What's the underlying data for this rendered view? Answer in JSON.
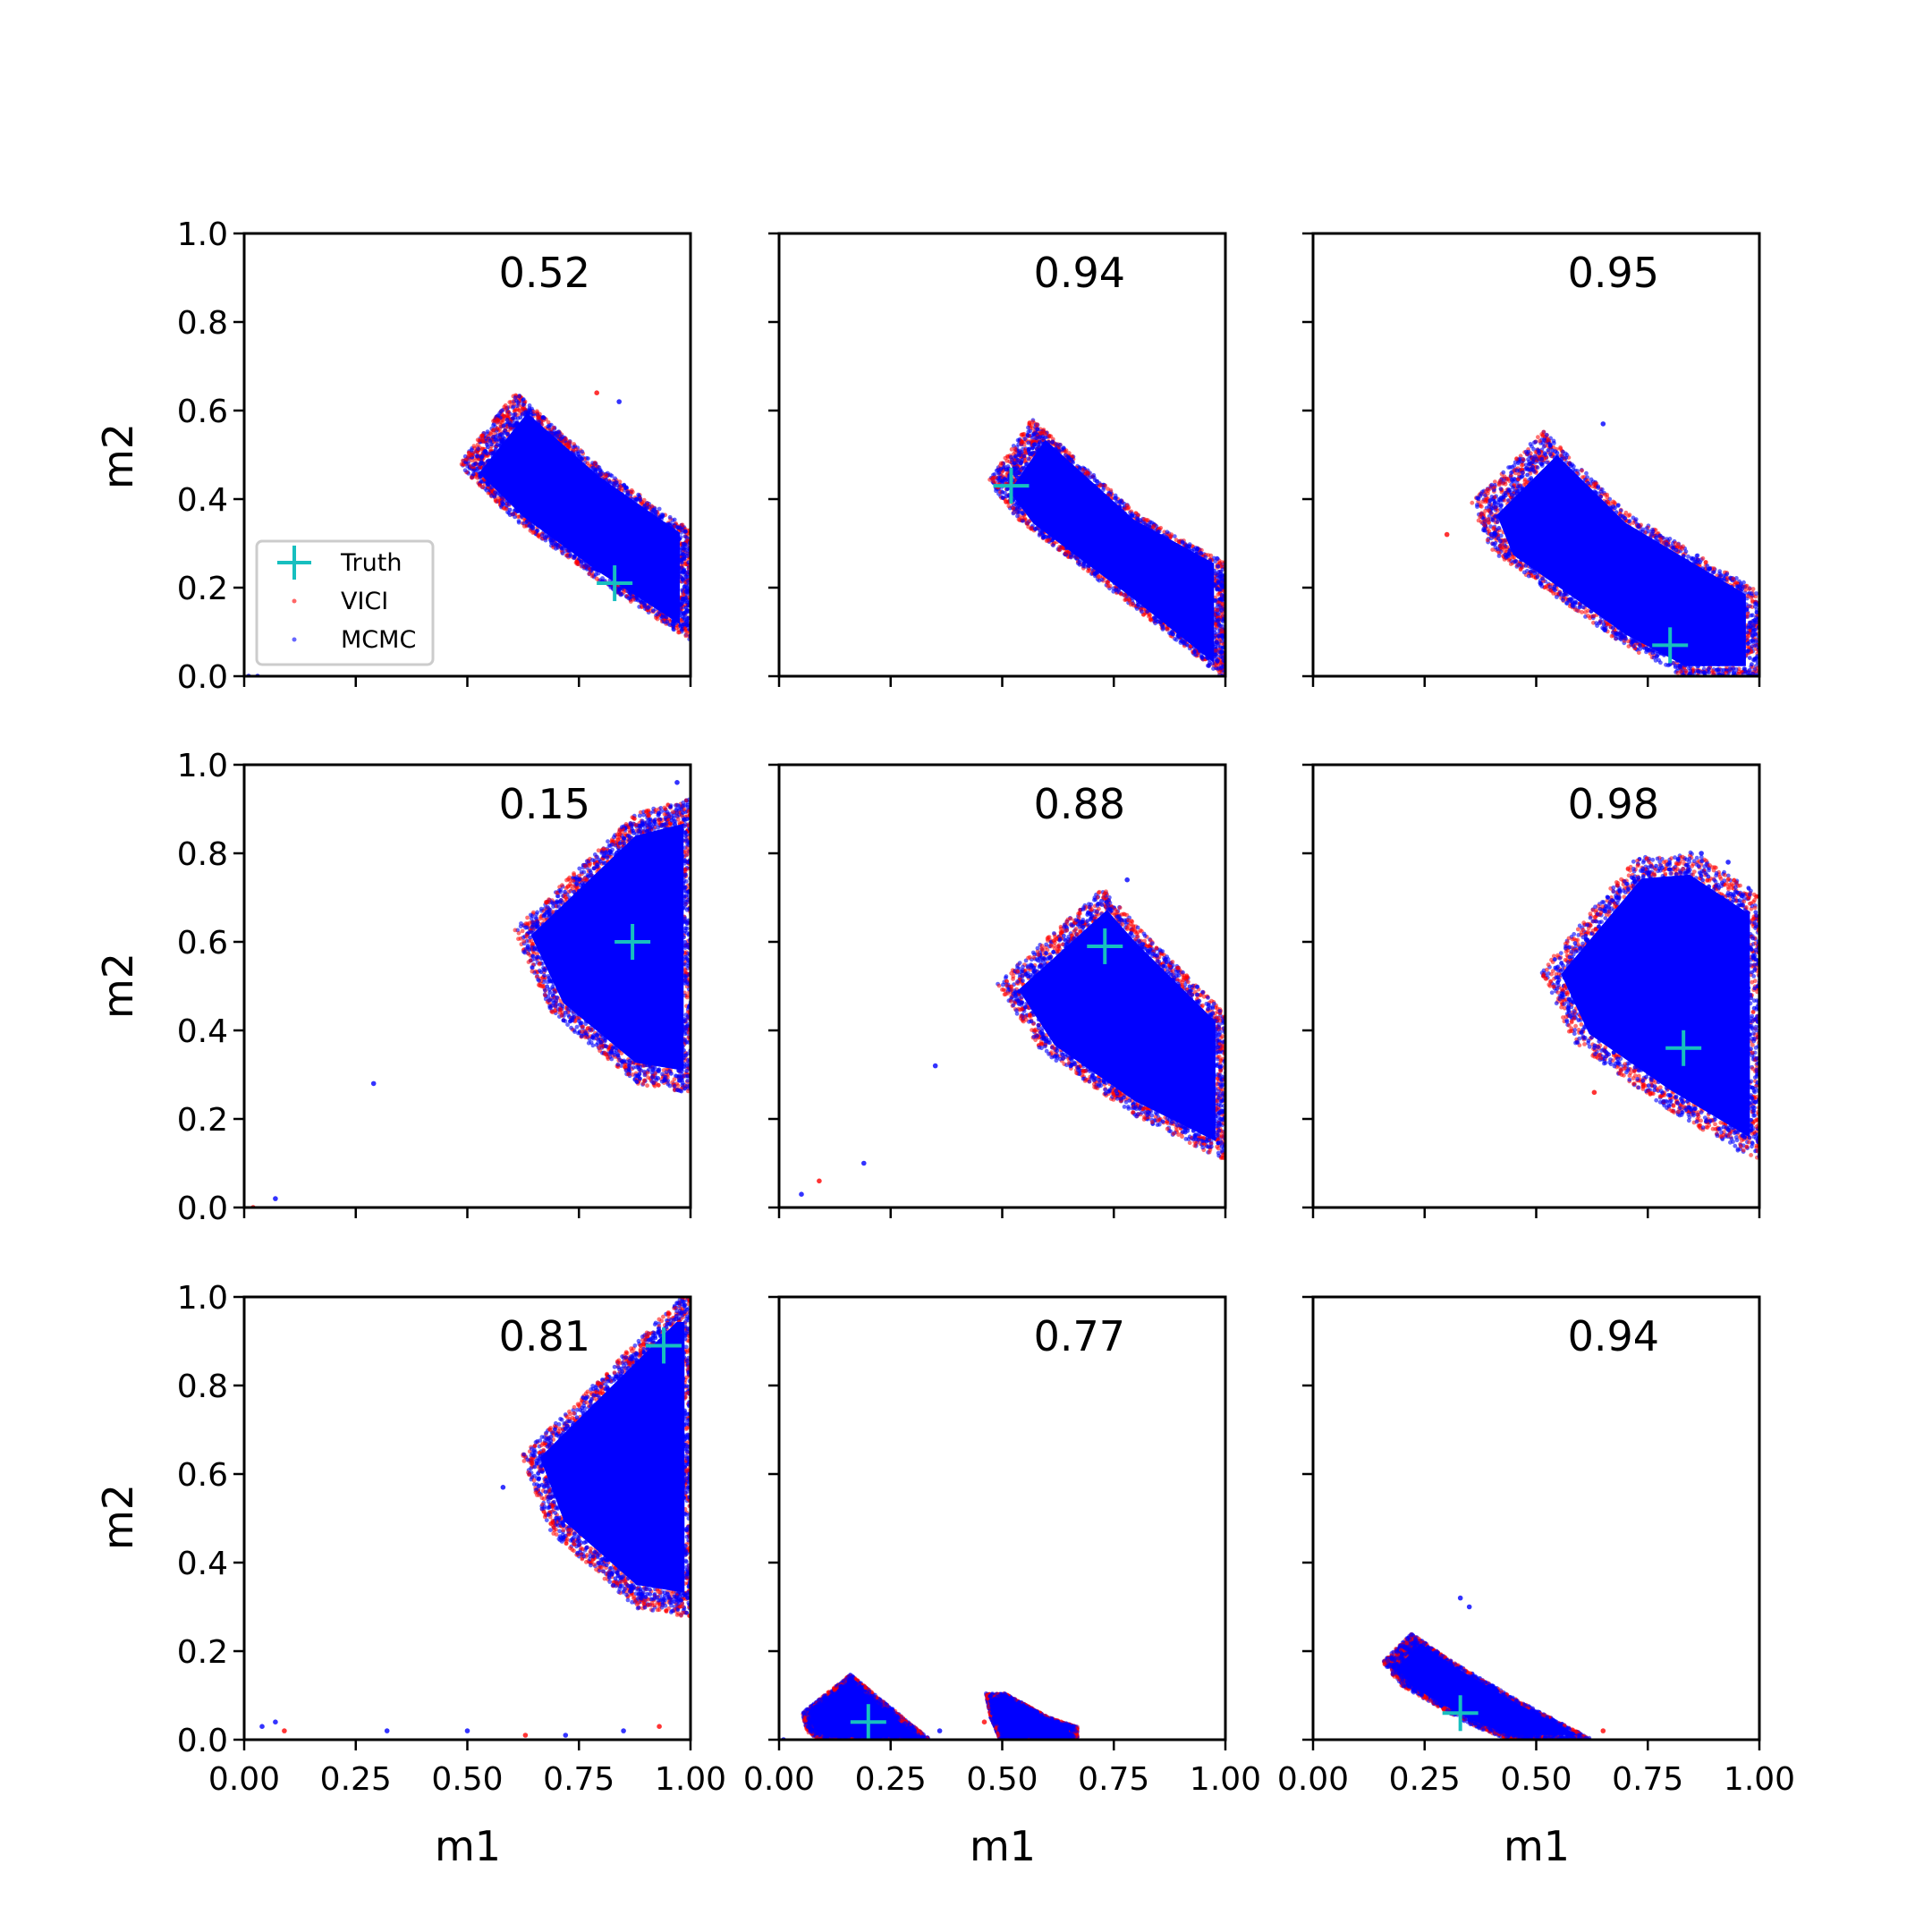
{
  "figure": {
    "xlabel": "m1",
    "ylabel": "m2",
    "legend": {
      "placement": "lower-left of first panel",
      "entries": [
        {
          "label": "Truth",
          "marker": "plus",
          "color": "#17bfbf"
        },
        {
          "label": "VICI",
          "marker": "dot",
          "color": "#ff0000"
        },
        {
          "label": "MCMC",
          "marker": "dot",
          "color": "#0000ff"
        }
      ]
    }
  },
  "chart_data": [
    {
      "type": "scatter",
      "overlap": "0.52",
      "truth": [
        0.83,
        0.21
      ],
      "xlim": [
        0,
        1
      ],
      "ylim": [
        0,
        1
      ],
      "xticks": [
        "0.00",
        "0.25",
        "0.50",
        "0.75",
        "1.00"
      ],
      "yticks": [
        "0.0",
        "0.2",
        "0.4",
        "0.6",
        "0.8",
        "1.0"
      ],
      "grid": false,
      "band": [
        [
          0.62,
          0.62
        ],
        [
          0.5,
          0.47
        ],
        [
          0.61,
          0.36
        ],
        [
          0.8,
          0.22
        ],
        [
          1.0,
          0.09
        ],
        [
          1.0,
          0.32
        ],
        [
          0.8,
          0.46
        ]
      ],
      "outliers": [
        [
          0.01,
          0.0
        ],
        [
          0.03,
          0.0
        ],
        [
          0.79,
          0.64
        ],
        [
          0.84,
          0.62
        ]
      ]
    },
    {
      "type": "scatter",
      "overlap": "0.94",
      "truth": [
        0.52,
        0.43
      ],
      "xlim": [
        0,
        1
      ],
      "ylim": [
        0,
        1
      ],
      "xticks": [
        "0.00",
        "0.25",
        "0.50",
        "0.75",
        "1.00"
      ],
      "yticks": [
        "0.0",
        "0.2",
        "0.4",
        "0.6",
        "0.8",
        "1.0"
      ],
      "grid": false,
      "band": [
        [
          0.58,
          0.56
        ],
        [
          0.49,
          0.43
        ],
        [
          0.55,
          0.35
        ],
        [
          0.8,
          0.16
        ],
        [
          1.0,
          0.0
        ],
        [
          1.0,
          0.25
        ],
        [
          0.8,
          0.36
        ]
      ],
      "outliers": []
    },
    {
      "type": "scatter",
      "overlap": "0.95",
      "truth": [
        0.8,
        0.07
      ],
      "xlim": [
        0,
        1
      ],
      "ylim": [
        0,
        1
      ],
      "xticks": [
        "0.00",
        "0.25",
        "0.50",
        "0.75",
        "1.00"
      ],
      "yticks": [
        "0.0",
        "0.2",
        "0.4",
        "0.6",
        "0.8",
        "1.0"
      ],
      "grid": false,
      "band": [
        [
          0.53,
          0.53
        ],
        [
          0.38,
          0.38
        ],
        [
          0.42,
          0.28
        ],
        [
          0.7,
          0.08
        ],
        [
          0.85,
          0.0
        ],
        [
          1.0,
          0.0
        ],
        [
          1.0,
          0.18
        ],
        [
          0.7,
          0.36
        ]
      ],
      "outliers": [
        [
          0.65,
          0.57
        ],
        [
          0.4,
          0.32
        ],
        [
          0.3,
          0.32
        ]
      ]
    },
    {
      "type": "scatter",
      "overlap": "0.15",
      "truth": [
        0.87,
        0.6
      ],
      "xlim": [
        0,
        1
      ],
      "ylim": [
        0,
        1
      ],
      "xticks": [
        "0.00",
        "0.25",
        "0.50",
        "0.75",
        "1.00"
      ],
      "yticks": [
        "0.0",
        "0.2",
        "0.4",
        "0.6",
        "0.8",
        "1.0"
      ],
      "grid": false,
      "band": [
        [
          0.88,
          0.87
        ],
        [
          0.62,
          0.62
        ],
        [
          0.7,
          0.45
        ],
        [
          0.88,
          0.3
        ],
        [
          1.0,
          0.28
        ],
        [
          1.0,
          0.9
        ]
      ],
      "outliers": [
        [
          0.29,
          0.28
        ],
        [
          0.07,
          0.02
        ],
        [
          0.02,
          0.0
        ],
        [
          0.97,
          0.96
        ]
      ]
    },
    {
      "type": "scatter",
      "overlap": "0.88",
      "truth": [
        0.73,
        0.59
      ],
      "xlim": [
        0,
        1
      ],
      "ylim": [
        0,
        1
      ],
      "xticks": [
        "0.00",
        "0.25",
        "0.50",
        "0.75",
        "1.00"
      ],
      "yticks": [
        "0.0",
        "0.2",
        "0.4",
        "0.6",
        "0.8",
        "1.0"
      ],
      "grid": false,
      "band": [
        [
          0.73,
          0.7
        ],
        [
          0.51,
          0.5
        ],
        [
          0.6,
          0.36
        ],
        [
          0.8,
          0.22
        ],
        [
          1.0,
          0.12
        ],
        [
          1.0,
          0.42
        ],
        [
          0.8,
          0.62
        ]
      ],
      "outliers": [
        [
          0.35,
          0.32
        ],
        [
          0.19,
          0.1
        ],
        [
          0.09,
          0.06
        ],
        [
          0.05,
          0.03
        ],
        [
          0.78,
          0.74
        ]
      ]
    },
    {
      "type": "scatter",
      "overlap": "0.98",
      "truth": [
        0.83,
        0.36
      ],
      "xlim": [
        0,
        1
      ],
      "ylim": [
        0,
        1
      ],
      "xticks": [
        "0.00",
        "0.25",
        "0.50",
        "0.75",
        "1.00"
      ],
      "yticks": [
        "0.0",
        "0.2",
        "0.4",
        "0.6",
        "0.8",
        "1.0"
      ],
      "grid": false,
      "band": [
        [
          0.73,
          0.77
        ],
        [
          0.53,
          0.53
        ],
        [
          0.6,
          0.38
        ],
        [
          0.8,
          0.24
        ],
        [
          1.0,
          0.12
        ],
        [
          1.0,
          0.68
        ],
        [
          0.85,
          0.78
        ]
      ],
      "outliers": [
        [
          0.87,
          0.8
        ],
        [
          0.93,
          0.78
        ],
        [
          0.63,
          0.26
        ]
      ]
    },
    {
      "type": "scatter",
      "overlap": "0.81",
      "truth": [
        0.94,
        0.89
      ],
      "xlim": [
        0,
        1
      ],
      "ylim": [
        0,
        1
      ],
      "xticks": [
        "0.00",
        "0.25",
        "0.50",
        "0.75",
        "1.00"
      ],
      "yticks": [
        "0.0",
        "0.2",
        "0.4",
        "0.6",
        "0.8",
        "1.0"
      ],
      "grid": false,
      "band": [
        [
          0.98,
          0.98
        ],
        [
          0.64,
          0.64
        ],
        [
          0.7,
          0.48
        ],
        [
          0.88,
          0.32
        ],
        [
          1.0,
          0.3
        ],
        [
          1.0,
          0.98
        ]
      ],
      "outliers": [
        [
          0.04,
          0.03
        ],
        [
          0.07,
          0.04
        ],
        [
          0.09,
          0.02
        ],
        [
          0.32,
          0.02
        ],
        [
          0.5,
          0.02
        ],
        [
          0.63,
          0.01
        ],
        [
          0.72,
          0.01
        ],
        [
          0.85,
          0.02
        ],
        [
          0.93,
          0.03
        ],
        [
          0.58,
          0.57
        ]
      ]
    },
    {
      "type": "scatter",
      "overlap": "0.77",
      "truth": [
        0.2,
        0.04
      ],
      "xlim": [
        0,
        1
      ],
      "ylim": [
        0,
        1
      ],
      "xticks": [
        "0.00",
        "0.25",
        "0.50",
        "0.75",
        "1.00"
      ],
      "yticks": [
        "0.0",
        "0.2",
        "0.4",
        "0.6",
        "0.8",
        "1.0"
      ],
      "grid": false,
      "band": [
        [
          0.16,
          0.14
        ],
        [
          0.06,
          0.06
        ],
        [
          0.07,
          0.02
        ],
        [
          0.1,
          0.0
        ],
        [
          0.33,
          0.0
        ],
        [
          0.22,
          0.09
        ]
      ],
      "band2": [
        [
          0.47,
          0.1
        ],
        [
          0.51,
          0.1
        ],
        [
          0.6,
          0.05
        ],
        [
          0.66,
          0.03
        ],
        [
          0.66,
          0.0
        ],
        [
          0.5,
          0.0
        ],
        [
          0.48,
          0.05
        ]
      ],
      "outliers": [
        [
          0.01,
          0.0
        ],
        [
          0.36,
          0.02
        ],
        [
          0.46,
          0.04
        ]
      ]
    },
    {
      "type": "scatter",
      "overlap": "0.94",
      "truth": [
        0.33,
        0.06
      ],
      "xlim": [
        0,
        1
      ],
      "ylim": [
        0,
        1
      ],
      "xticks": [
        "0.00",
        "0.25",
        "0.50",
        "0.75",
        "1.00"
      ],
      "yticks": [
        "0.0",
        "0.2",
        "0.4",
        "0.6",
        "0.8",
        "1.0"
      ],
      "grid": false,
      "band": [
        [
          0.23,
          0.23
        ],
        [
          0.17,
          0.17
        ],
        [
          0.21,
          0.12
        ],
        [
          0.35,
          0.04
        ],
        [
          0.45,
          0.0
        ],
        [
          0.62,
          0.0
        ],
        [
          0.45,
          0.09
        ],
        [
          0.3,
          0.18
        ]
      ],
      "outliers": [
        [
          0.33,
          0.32
        ],
        [
          0.35,
          0.3
        ],
        [
          0.65,
          0.02
        ]
      ]
    }
  ]
}
